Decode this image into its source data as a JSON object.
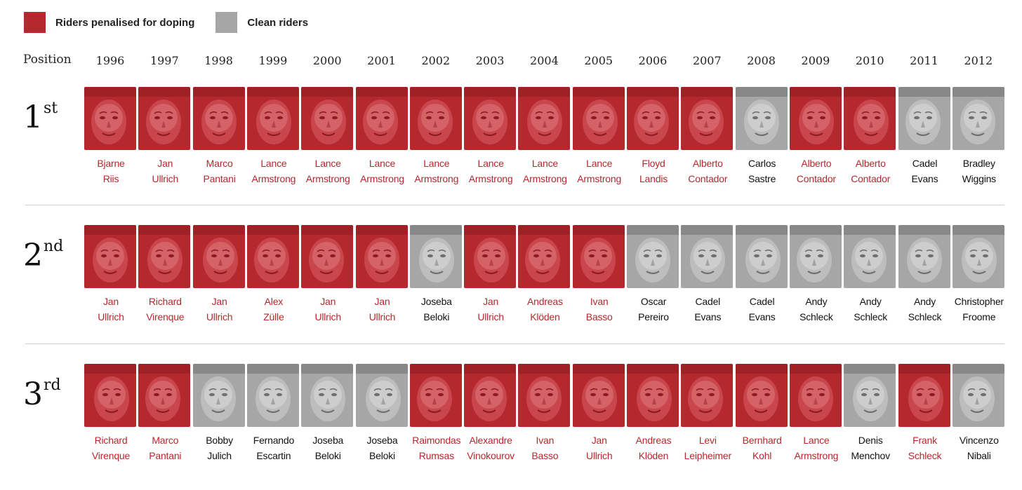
{
  "legend": {
    "doping_label": "Riders penalised for doping",
    "clean_label": "Clean riders",
    "doping_color": "#b5282e",
    "clean_color": "#a6a6a6"
  },
  "header": {
    "position_label": "Position",
    "years": [
      "1996",
      "1997",
      "1998",
      "1999",
      "2000",
      "2001",
      "2002",
      "2003",
      "2004",
      "2005",
      "2006",
      "2007",
      "2008",
      "2009",
      "2010",
      "2011",
      "2012"
    ]
  },
  "rows": [
    {
      "rank_number": "1",
      "rank_suffix": "st",
      "riders": [
        {
          "first": "Bjarne",
          "last": "Riis",
          "doping": true
        },
        {
          "first": "Jan",
          "last": "Ullrich",
          "doping": true
        },
        {
          "first": "Marco",
          "last": "Pantani",
          "doping": true
        },
        {
          "first": "Lance",
          "last": "Armstrong",
          "doping": true
        },
        {
          "first": "Lance",
          "last": "Armstrong",
          "doping": true
        },
        {
          "first": "Lance",
          "last": "Armstrong",
          "doping": true
        },
        {
          "first": "Lance",
          "last": "Armstrong",
          "doping": true
        },
        {
          "first": "Lance",
          "last": "Armstrong",
          "doping": true
        },
        {
          "first": "Lance",
          "last": "Armstrong",
          "doping": true
        },
        {
          "first": "Lance",
          "last": "Armstrong",
          "doping": true
        },
        {
          "first": "Floyd",
          "last": "Landis",
          "doping": true
        },
        {
          "first": "Alberto",
          "last": "Contador",
          "doping": true
        },
        {
          "first": "Carlos",
          "last": "Sastre",
          "doping": false
        },
        {
          "first": "Alberto",
          "last": "Contador",
          "doping": true
        },
        {
          "first": "Alberto",
          "last": "Contador",
          "doping": true
        },
        {
          "first": "Cadel",
          "last": "Evans",
          "doping": false
        },
        {
          "first": "Bradley",
          "last": "Wiggins",
          "doping": false
        }
      ]
    },
    {
      "rank_number": "2",
      "rank_suffix": "nd",
      "riders": [
        {
          "first": "Jan",
          "last": "Ullrich",
          "doping": true
        },
        {
          "first": "Richard",
          "last": "Virenque",
          "doping": true
        },
        {
          "first": "Jan",
          "last": "Ullrich",
          "doping": true
        },
        {
          "first": "Alex",
          "last": "Zülle",
          "doping": true
        },
        {
          "first": "Jan",
          "last": "Ullrich",
          "doping": true
        },
        {
          "first": "Jan",
          "last": "Ullrich",
          "doping": true
        },
        {
          "first": "Joseba",
          "last": "Beloki",
          "doping": false
        },
        {
          "first": "Jan",
          "last": "Ullrich",
          "doping": true
        },
        {
          "first": "Andreas",
          "last": "Klöden",
          "doping": true
        },
        {
          "first": "Ivan",
          "last": "Basso",
          "doping": true
        },
        {
          "first": "Oscar",
          "last": "Pereiro",
          "doping": false
        },
        {
          "first": "Cadel",
          "last": "Evans",
          "doping": false
        },
        {
          "first": "Cadel",
          "last": "Evans",
          "doping": false
        },
        {
          "first": "Andy",
          "last": "Schleck",
          "doping": false
        },
        {
          "first": "Andy",
          "last": "Schleck",
          "doping": false
        },
        {
          "first": "Andy",
          "last": "Schleck",
          "doping": false
        },
        {
          "first": "Christopher",
          "last": "Froome",
          "doping": false
        }
      ]
    },
    {
      "rank_number": "3",
      "rank_suffix": "rd",
      "riders": [
        {
          "first": "Richard",
          "last": "Virenque",
          "doping": true
        },
        {
          "first": "Marco",
          "last": "Pantani",
          "doping": true
        },
        {
          "first": "Bobby",
          "last": "Julich",
          "doping": false
        },
        {
          "first": "Fernando",
          "last": "Escartin",
          "doping": false
        },
        {
          "first": "Joseba",
          "last": "Beloki",
          "doping": false
        },
        {
          "first": "Joseba",
          "last": "Beloki",
          "doping": false
        },
        {
          "first": "Raimondas",
          "last": "Rumsas",
          "doping": true
        },
        {
          "first": "Alexandre",
          "last": "Vinokourov",
          "doping": true
        },
        {
          "first": "Ivan",
          "last": "Basso",
          "doping": true
        },
        {
          "first": "Jan",
          "last": "Ullrich",
          "doping": true
        },
        {
          "first": "Andreas",
          "last": "Klöden",
          "doping": true
        },
        {
          "first": "Levi",
          "last": "Leipheimer",
          "doping": true
        },
        {
          "first": "Bernhard",
          "last": "Kohl",
          "doping": true
        },
        {
          "first": "Lance",
          "last": "Armstrong",
          "doping": true
        },
        {
          "first": "Denis",
          "last": "Menchov",
          "doping": false
        },
        {
          "first": "Frank",
          "last": "Schleck",
          "doping": true
        },
        {
          "first": "Vincenzo",
          "last": "Nibali",
          "doping": false
        }
      ]
    }
  ]
}
